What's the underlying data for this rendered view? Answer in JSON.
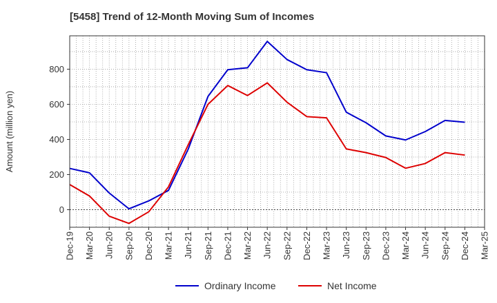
{
  "chart_data": {
    "type": "line",
    "title": "[5458]  Trend of 12-Month Moving Sum of Incomes",
    "xlabel": "",
    "ylabel": "Amount (million yen)",
    "ylim": [
      -100,
      990
    ],
    "yticks": [
      0,
      200,
      400,
      600,
      800
    ],
    "grid": true,
    "legend_position": "bottom",
    "x_tick_labels": [
      "Dec-19",
      "Mar-20",
      "Jun-20",
      "Sep-20",
      "Dec-20",
      "Mar-21",
      "Jun-21",
      "Sep-21",
      "Dec-21",
      "Mar-22",
      "Jun-22",
      "Sep-22",
      "Dec-22",
      "Mar-23",
      "Jun-23",
      "Sep-23",
      "Dec-23",
      "Mar-24",
      "Jun-24",
      "Sep-24",
      "Dec-24",
      "Mar-25"
    ],
    "x": [
      "Dec-19",
      "Mar-20",
      "Jun-20",
      "Sep-20",
      "Dec-20",
      "Mar-21",
      "Jun-21",
      "Sep-21",
      "Dec-21",
      "Mar-22",
      "Jun-22",
      "Sep-22",
      "Dec-22",
      "Mar-23",
      "Jun-23",
      "Sep-23",
      "Dec-23",
      "Mar-24",
      "Jun-24",
      "Sep-24",
      "Dec-24"
    ],
    "series": [
      {
        "name": "Ordinary Income",
        "color": "#0000cc",
        "values": [
          235,
          210,
          95,
          5,
          50,
          110,
          345,
          645,
          797,
          808,
          958,
          855,
          797,
          780,
          555,
          495,
          420,
          397,
          445,
          508,
          498
        ]
      },
      {
        "name": "Net Income",
        "color": "#dd0000",
        "values": [
          143,
          78,
          -37,
          -78,
          -12,
          130,
          370,
          600,
          707,
          650,
          722,
          612,
          530,
          523,
          346,
          325,
          297,
          236,
          263,
          325,
          311
        ]
      }
    ]
  }
}
